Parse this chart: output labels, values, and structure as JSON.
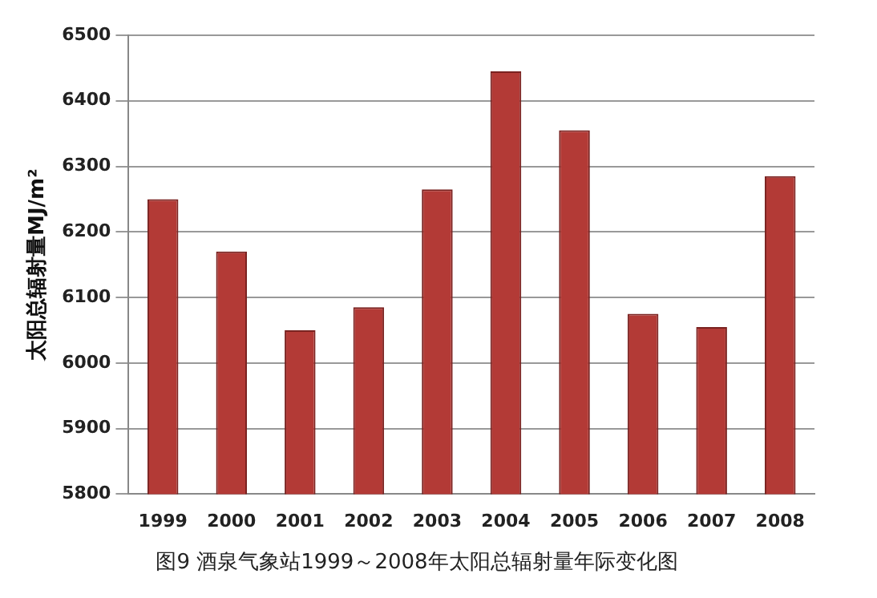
{
  "chart_data": {
    "type": "bar",
    "title": "图9 酒泉气象站1999～2008年太阳总辐射量年际变化图",
    "ylabel": "太阳总辐射量MJ/m²",
    "categories": [
      "1999",
      "2000",
      "2001",
      "2002",
      "2003",
      "2004",
      "2005",
      "2006",
      "2007",
      "2008"
    ],
    "values": [
      6250,
      6170,
      6050,
      6085,
      6265,
      6445,
      6355,
      6075,
      6055,
      6285
    ],
    "color": "#b33a36",
    "ylim": [
      5800,
      6500
    ],
    "yticks": [
      5800,
      5900,
      6000,
      6100,
      6200,
      6300,
      6400,
      6500
    ],
    "grid": true
  }
}
